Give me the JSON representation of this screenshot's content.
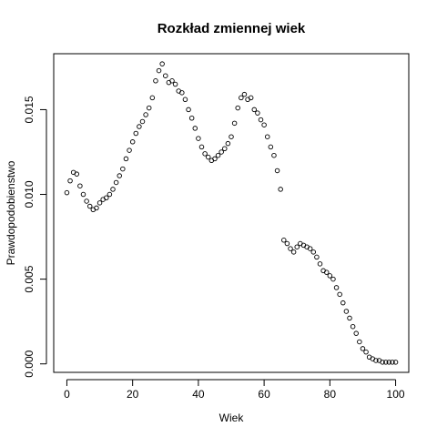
{
  "chart_data": {
    "type": "scatter",
    "title": "Rozkład zmiennej wiek",
    "xlabel": "Wiek",
    "ylabel": "Prawdopodobienstwo",
    "xlim": [
      -4,
      104
    ],
    "ylim": [
      -0.0005,
      0.0183
    ],
    "xticks": [
      0,
      20,
      40,
      60,
      80,
      100
    ],
    "xtick_labels": [
      "0",
      "20",
      "40",
      "60",
      "80",
      "100"
    ],
    "yticks": [
      0.0,
      0.005,
      0.01,
      0.015
    ],
    "ytick_labels": [
      "0.000",
      "0.005",
      "0.010",
      "0.015"
    ],
    "grid": false,
    "marker": "open-circle",
    "x": [
      0,
      1,
      2,
      3,
      4,
      5,
      6,
      7,
      8,
      9,
      10,
      11,
      12,
      13,
      14,
      15,
      16,
      17,
      18,
      19,
      20,
      21,
      22,
      23,
      24,
      25,
      26,
      27,
      28,
      29,
      30,
      31,
      32,
      33,
      34,
      35,
      36,
      37,
      38,
      39,
      40,
      41,
      42,
      43,
      44,
      45,
      46,
      47,
      48,
      49,
      50,
      51,
      52,
      53,
      54,
      55,
      56,
      57,
      58,
      59,
      60,
      61,
      62,
      63,
      64,
      65,
      66,
      67,
      68,
      69,
      70,
      71,
      72,
      73,
      74,
      75,
      76,
      77,
      78,
      79,
      80,
      81,
      82,
      83,
      84,
      85,
      86,
      87,
      88,
      89,
      90,
      91,
      92,
      93,
      94,
      95,
      96,
      97,
      98,
      99,
      100
    ],
    "y": [
      0.0101,
      0.0108,
      0.0113,
      0.0112,
      0.0105,
      0.01,
      0.0096,
      0.0093,
      0.0091,
      0.0092,
      0.0095,
      0.0097,
      0.0098,
      0.01,
      0.0103,
      0.0107,
      0.0111,
      0.0115,
      0.0121,
      0.0126,
      0.0131,
      0.0136,
      0.014,
      0.0143,
      0.0147,
      0.0151,
      0.0157,
      0.0167,
      0.0173,
      0.0177,
      0.017,
      0.0166,
      0.0167,
      0.0165,
      0.0161,
      0.016,
      0.0156,
      0.015,
      0.0145,
      0.0139,
      0.0133,
      0.0128,
      0.0124,
      0.0122,
      0.012,
      0.0121,
      0.0123,
      0.0125,
      0.0127,
      0.013,
      0.0134,
      0.0142,
      0.0151,
      0.0157,
      0.0159,
      0.0156,
      0.0157,
      0.015,
      0.0148,
      0.0144,
      0.0141,
      0.0134,
      0.0128,
      0.0123,
      0.0114,
      0.0103,
      0.0073,
      0.0071,
      0.0068,
      0.0066,
      0.0069,
      0.0071,
      0.007,
      0.0069,
      0.0068,
      0.0066,
      0.0063,
      0.0059,
      0.0055,
      0.0054,
      0.0052,
      0.005,
      0.0045,
      0.0041,
      0.0036,
      0.0031,
      0.0027,
      0.0022,
      0.0018,
      0.0013,
      0.0009,
      0.0007,
      0.0004,
      0.0003,
      0.0002,
      0.0002,
      0.0001,
      0.0001,
      0.0001,
      0.0001,
      0.0001
    ]
  }
}
